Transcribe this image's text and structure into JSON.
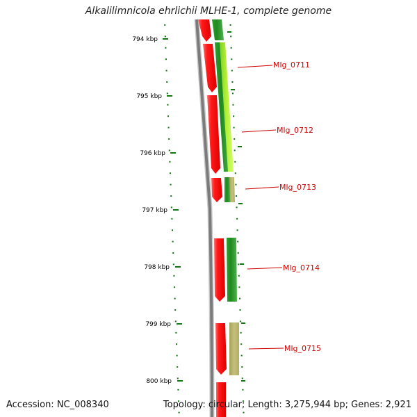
{
  "title": "Alkalilimnicola ehrlichii MLHE-1, complete genome",
  "footer": {
    "accession": "Accession: NC_008340",
    "summary": "Topology: circular; Length: 3,275,944 bp; Genes: 2,921"
  },
  "colors": {
    "background": "#ffffff",
    "backbone": "#808080",
    "cds": "#ee1111",
    "gene_dark_green": "#1e8a1e",
    "gene_light_green": "#a8e830",
    "gene_olive": "#b7b46a",
    "tick": "#117711",
    "label": "#cc0000"
  },
  "scale": {
    "unit": "kbp",
    "major_ticks": [
      {
        "label": "794 kbp"
      },
      {
        "label": "795 kbp"
      },
      {
        "label": "796 kbp"
      },
      {
        "label": "797 kbp"
      },
      {
        "label": "798 kbp"
      },
      {
        "label": "799 kbp"
      },
      {
        "label": "800 kbp"
      }
    ]
  },
  "genes": [
    {
      "label": "Mlg_0711"
    },
    {
      "label": "Mlg_0712"
    },
    {
      "label": "Mlg_0713"
    },
    {
      "label": "Mlg_0714"
    },
    {
      "label": "Mlg_0715"
    }
  ]
}
